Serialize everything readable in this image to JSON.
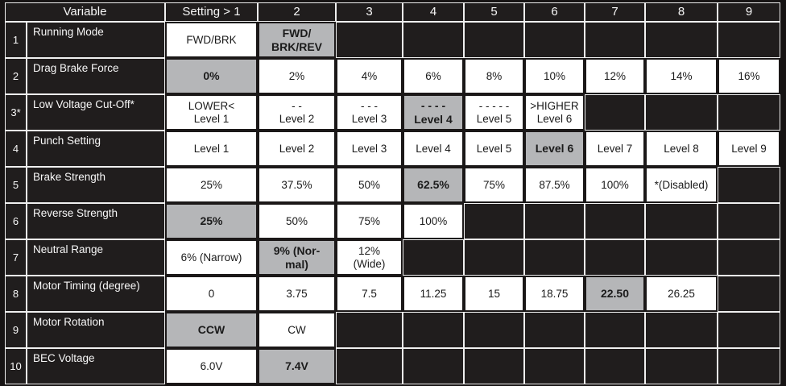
{
  "colors": {
    "table_black": "#201d1d",
    "cell_white": "#ffffff",
    "selected_gray": "#b5b6b8",
    "gridline_white": "#efefef",
    "text_light": "#f7f7f7",
    "text_dark": "#1b1b1b"
  },
  "table": {
    "header": {
      "variable_label": "Variable",
      "setting_labels": [
        "Setting > 1",
        "2",
        "3",
        "4",
        "5",
        "6",
        "7",
        "8",
        "9"
      ]
    },
    "rows": [
      {
        "num": "1",
        "variable": "Running Mode",
        "cells": [
          {
            "text": "FWD/BRK",
            "state": "normal"
          },
          {
            "text": "FWD/\nBRK/REV",
            "state": "selected"
          },
          {
            "text": "",
            "state": "empty"
          },
          {
            "text": "",
            "state": "empty"
          },
          {
            "text": "",
            "state": "empty"
          },
          {
            "text": "",
            "state": "empty"
          },
          {
            "text": "",
            "state": "empty"
          },
          {
            "text": "",
            "state": "empty"
          },
          {
            "text": "",
            "state": "empty"
          }
        ]
      },
      {
        "num": "2",
        "variable": "Drag Brake Force",
        "cells": [
          {
            "text": "0%",
            "state": "selected"
          },
          {
            "text": "2%",
            "state": "normal"
          },
          {
            "text": "4%",
            "state": "normal"
          },
          {
            "text": "6%",
            "state": "normal"
          },
          {
            "text": "8%",
            "state": "normal"
          },
          {
            "text": "10%",
            "state": "normal"
          },
          {
            "text": "12%",
            "state": "normal"
          },
          {
            "text": "14%",
            "state": "normal"
          },
          {
            "text": "16%",
            "state": "normal"
          }
        ]
      },
      {
        "num": "3*",
        "variable": "Low Voltage Cut-Off*",
        "cells": [
          {
            "text": "LOWER<\nLevel 1",
            "state": "normal"
          },
          {
            "text": "- -\nLevel 2",
            "state": "normal"
          },
          {
            "text": "- - -\nLevel 3",
            "state": "normal"
          },
          {
            "text": "- - - -\nLevel 4",
            "state": "selected"
          },
          {
            "text": "- - - - -\nLevel 5",
            "state": "normal"
          },
          {
            "text": ">HIGHER\nLevel 6",
            "state": "normal"
          },
          {
            "text": "",
            "state": "empty"
          },
          {
            "text": "",
            "state": "empty"
          },
          {
            "text": "",
            "state": "empty"
          }
        ]
      },
      {
        "num": "4",
        "variable": "Punch Setting",
        "cells": [
          {
            "text": "Level 1",
            "state": "normal"
          },
          {
            "text": "Level 2",
            "state": "normal"
          },
          {
            "text": "Level 3",
            "state": "normal"
          },
          {
            "text": "Level 4",
            "state": "normal"
          },
          {
            "text": "Level 5",
            "state": "normal"
          },
          {
            "text": "Level 6",
            "state": "selected"
          },
          {
            "text": "Level 7",
            "state": "normal"
          },
          {
            "text": "Level 8",
            "state": "normal"
          },
          {
            "text": "Level 9",
            "state": "normal"
          }
        ]
      },
      {
        "num": "5",
        "variable": "Brake Strength",
        "cells": [
          {
            "text": "25%",
            "state": "normal"
          },
          {
            "text": "37.5%",
            "state": "normal"
          },
          {
            "text": "50%",
            "state": "normal"
          },
          {
            "text": "62.5%",
            "state": "selected"
          },
          {
            "text": "75%",
            "state": "normal"
          },
          {
            "text": "87.5%",
            "state": "normal"
          },
          {
            "text": "100%",
            "state": "normal"
          },
          {
            "text": "*(Disabled)",
            "state": "normal"
          },
          {
            "text": "",
            "state": "empty"
          }
        ]
      },
      {
        "num": "6",
        "variable": "Reverse Strength",
        "cells": [
          {
            "text": "25%",
            "state": "selected"
          },
          {
            "text": "50%",
            "state": "normal"
          },
          {
            "text": "75%",
            "state": "normal"
          },
          {
            "text": "100%",
            "state": "normal"
          },
          {
            "text": "",
            "state": "empty"
          },
          {
            "text": "",
            "state": "empty"
          },
          {
            "text": "",
            "state": "empty"
          },
          {
            "text": "",
            "state": "empty"
          },
          {
            "text": "",
            "state": "empty"
          }
        ]
      },
      {
        "num": "7",
        "variable": "Neutral Range",
        "cells": [
          {
            "text": "6% (Narrow)",
            "state": "normal"
          },
          {
            "text": "9% (Nor-\nmal)",
            "state": "selected"
          },
          {
            "text": "12%\n(Wide)",
            "state": "normal"
          },
          {
            "text": "",
            "state": "empty"
          },
          {
            "text": "",
            "state": "empty"
          },
          {
            "text": "",
            "state": "empty"
          },
          {
            "text": "",
            "state": "empty"
          },
          {
            "text": "",
            "state": "empty"
          },
          {
            "text": "",
            "state": "empty"
          }
        ]
      },
      {
        "num": "8",
        "variable": "Motor Timing (degree)",
        "cells": [
          {
            "text": "0",
            "state": "normal"
          },
          {
            "text": "3.75",
            "state": "normal"
          },
          {
            "text": "7.5",
            "state": "normal"
          },
          {
            "text": "11.25",
            "state": "normal"
          },
          {
            "text": "15",
            "state": "normal"
          },
          {
            "text": "18.75",
            "state": "normal"
          },
          {
            "text": "22.50",
            "state": "selected"
          },
          {
            "text": "26.25",
            "state": "normal"
          },
          {
            "text": "",
            "state": "empty"
          }
        ]
      },
      {
        "num": "9",
        "variable": "Motor Rotation",
        "cells": [
          {
            "text": "CCW",
            "state": "selected"
          },
          {
            "text": "CW",
            "state": "normal"
          },
          {
            "text": "",
            "state": "empty"
          },
          {
            "text": "",
            "state": "empty"
          },
          {
            "text": "",
            "state": "empty"
          },
          {
            "text": "",
            "state": "empty"
          },
          {
            "text": "",
            "state": "empty"
          },
          {
            "text": "",
            "state": "empty"
          },
          {
            "text": "",
            "state": "empty"
          }
        ]
      },
      {
        "num": "10",
        "variable": "BEC Voltage",
        "cells": [
          {
            "text": "6.0V",
            "state": "normal"
          },
          {
            "text": "7.4V",
            "state": "selected"
          },
          {
            "text": "",
            "state": "empty"
          },
          {
            "text": "",
            "state": "empty"
          },
          {
            "text": "",
            "state": "empty"
          },
          {
            "text": "",
            "state": "empty"
          },
          {
            "text": "",
            "state": "empty"
          },
          {
            "text": "",
            "state": "empty"
          },
          {
            "text": "",
            "state": "empty"
          }
        ]
      }
    ]
  }
}
